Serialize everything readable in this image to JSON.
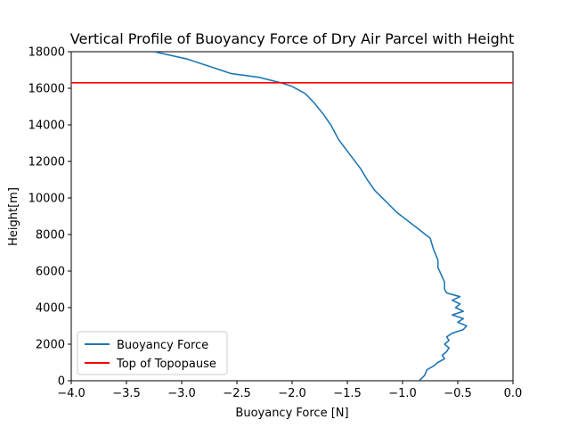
{
  "chart_data": {
    "type": "line",
    "title": "Vertical Profile of Buoyancy Force of Dry Air Parcel with Height",
    "xlabel": "Buoyancy Force [N]",
    "ylabel": "Height[m]",
    "xlim": [
      -4.0,
      0.0
    ],
    "ylim": [
      0,
      18000
    ],
    "xticks": [
      "−4.0",
      "−3.5",
      "−3.0",
      "−2.5",
      "−2.0",
      "−1.5",
      "−1.0",
      "−0.5",
      "0.0"
    ],
    "xtick_values": [
      -4.0,
      -3.5,
      -3.0,
      -2.5,
      -2.0,
      -1.5,
      -1.0,
      -0.5,
      0.0
    ],
    "yticks": [
      "0",
      "2000",
      "4000",
      "6000",
      "8000",
      "10000",
      "12000",
      "14000",
      "16000",
      "18000"
    ],
    "ytick_values": [
      0,
      2000,
      4000,
      6000,
      8000,
      10000,
      12000,
      14000,
      16000,
      18000
    ],
    "grid": false,
    "legend_position": "lower-left",
    "series": [
      {
        "name": "Buoyancy Force",
        "color": "#1f77b4",
        "x": [
          -0.85,
          -0.8,
          -0.78,
          -0.72,
          -0.68,
          -0.62,
          -0.64,
          -0.6,
          -0.58,
          -0.62,
          -0.58,
          -0.6,
          -0.55,
          -0.45,
          -0.42,
          -0.5,
          -0.45,
          -0.55,
          -0.45,
          -0.52,
          -0.48,
          -0.55,
          -0.48,
          -0.6,
          -0.62,
          -0.62,
          -0.65,
          -0.68,
          -0.68,
          -0.72,
          -0.75,
          -0.92,
          -1.05,
          -1.15,
          -1.25,
          -1.32,
          -1.38,
          -1.48,
          -1.58,
          -1.65,
          -1.72,
          -1.8,
          -1.88,
          -2.0,
          -2.1,
          -2.3,
          -2.55,
          -2.75,
          -2.95,
          -3.25
        ],
        "y": [
          0,
          300,
          600,
          800,
          1000,
          1200,
          1400,
          1600,
          1800,
          2000,
          2200,
          2400,
          2600,
          2800,
          3000,
          3200,
          3400,
          3600,
          3800,
          4000,
          4200,
          4400,
          4600,
          4800,
          5000,
          5400,
          5800,
          6200,
          6600,
          7200,
          7800,
          8600,
          9200,
          9800,
          10400,
          11000,
          11600,
          12400,
          13200,
          14000,
          14600,
          15200,
          15700,
          16100,
          16300,
          16600,
          16800,
          17200,
          17600,
          18000
        ]
      },
      {
        "name": "Top of Topopause",
        "color": "#ff0000",
        "y_constant": 16300
      }
    ]
  }
}
